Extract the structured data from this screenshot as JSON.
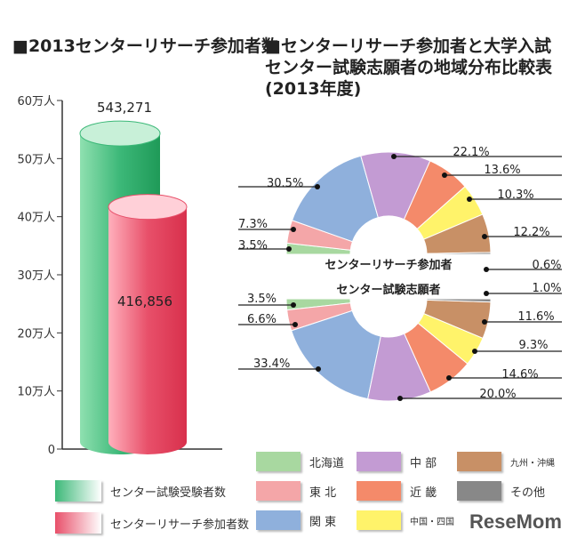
{
  "chart_data": [
    {
      "type": "bar",
      "title": "■2013センターリサーチ参加者数",
      "categories": [
        "センター試験受験者数",
        "センターリサーチ参加者数"
      ],
      "values": [
        543271,
        416856
      ],
      "value_labels": [
        "543,271",
        "416,856"
      ],
      "ylim": [
        0,
        600000
      ],
      "yticks": [
        "0",
        "10万人",
        "20万人",
        "30万人",
        "40万人",
        "50万人",
        "60万人"
      ],
      "colors": [
        "#3cb878",
        "#e8506a"
      ],
      "legend": "bottom"
    },
    {
      "type": "pie",
      "title": "■センターリサーチ参加者と大学入試センター試験志願者の地域分布比較表(2013年度)",
      "categories": [
        "北海道",
        "東 北",
        "関 東",
        "中 部",
        "近 畿",
        "中国・四国",
        "九州・沖縄",
        "その他"
      ],
      "colors": [
        "#a8d8a0",
        "#f4a6a8",
        "#8fb0dc",
        "#c39bd3",
        "#f48a6a",
        "#fff36a",
        "#c89066",
        "#888888"
      ],
      "series": [
        {
          "name": "センターリサーチ参加者",
          "values": [
            3.5,
            7.3,
            30.5,
            22.1,
            13.6,
            10.3,
            12.2,
            0.6
          ]
        },
        {
          "name": "センター試験志願者",
          "values": [
            3.5,
            6.6,
            33.4,
            20.0,
            14.6,
            9.3,
            11.6,
            1.0
          ]
        }
      ],
      "legend": "bottom"
    }
  ],
  "logo": "ReseMom"
}
